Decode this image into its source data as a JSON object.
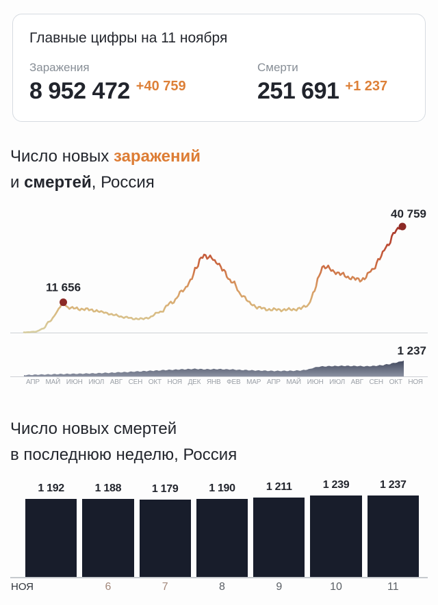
{
  "colors": {
    "accent": "#dd7d35",
    "text_dark": "#23262d",
    "text_gray": "#878e96",
    "bar": "#181d2b",
    "dot": "#8c2a26",
    "weekend_label": "#a3887b",
    "weekday_label": "#5b6066",
    "line_gradient": [
      "#9e2f26",
      "#bc4a33",
      "#cd6d43",
      "#d89a62",
      "#d9b97f",
      "#d8cfa2"
    ],
    "area_gradient": [
      "#323950",
      "#8e94a4"
    ]
  },
  "summary_card": {
    "title": "Главные цифры на 11 ноября",
    "stats": [
      {
        "label": "Заражения",
        "value": "8 952 472",
        "delta": "+40 759"
      },
      {
        "label": "Смерти",
        "value": "251 691",
        "delta": "+1 237"
      }
    ]
  },
  "chart1_title": {
    "l1_normal": "Число новых ",
    "l1_accent": "заражений",
    "l2_pre": "и ",
    "l2_bold": "смертей",
    "l2_post": ", Россия"
  },
  "chart2_title": {
    "line1": "Число новых смертей",
    "line2": "в последнюю неделю, Россия"
  },
  "chart_data": [
    {
      "type": "line",
      "title": "Число новых заражений и смертей, Россия",
      "x_ticks": [
        "АПР",
        "МАЙ",
        "ИЮН",
        "ИЮЛ",
        "АВГ",
        "СЕН",
        "ОКТ",
        "НОЯ",
        "ДЕК",
        "ЯНВ",
        "ФЕВ",
        "МАР",
        "АПР",
        "МАЙ",
        "ИЮН",
        "ИЮЛ",
        "АВГ",
        "СЕН",
        "ОКТ",
        "НОЯ"
      ],
      "series": [
        {
          "name": "заражения",
          "style": "line",
          "points": [
            [
              0.0,
              120
            ],
            [
              0.03,
              300
            ],
            [
              0.05,
              1500
            ],
            [
              0.07,
              4500
            ],
            [
              0.085,
              7500
            ],
            [
              0.095,
              9800
            ],
            [
              0.104,
              11656
            ],
            [
              0.115,
              9800
            ],
            [
              0.13,
              9300
            ],
            [
              0.15,
              9100
            ],
            [
              0.18,
              8700
            ],
            [
              0.21,
              7800
            ],
            [
              0.24,
              6700
            ],
            [
              0.27,
              5800
            ],
            [
              0.29,
              5400
            ],
            [
              0.31,
              5200
            ],
            [
              0.33,
              5800
            ],
            [
              0.36,
              8000
            ],
            [
              0.39,
              11500
            ],
            [
              0.42,
              16000
            ],
            [
              0.44,
              20000
            ],
            [
              0.455,
              24500
            ],
            [
              0.468,
              29000
            ],
            [
              0.475,
              29935
            ],
            [
              0.485,
              28500
            ],
            [
              0.495,
              29000
            ],
            [
              0.51,
              27000
            ],
            [
              0.525,
              24000
            ],
            [
              0.55,
              19500
            ],
            [
              0.575,
              14500
            ],
            [
              0.6,
              11000
            ],
            [
              0.62,
              9600
            ],
            [
              0.64,
              9000
            ],
            [
              0.66,
              8800
            ],
            [
              0.7,
              8800
            ],
            [
              0.73,
              9200
            ],
            [
              0.75,
              10500
            ],
            [
              0.765,
              15000
            ],
            [
              0.78,
              21500
            ],
            [
              0.787,
              25500
            ],
            [
              0.8,
              25000
            ],
            [
              0.82,
              23500
            ],
            [
              0.84,
              22300
            ],
            [
              0.86,
              21200
            ],
            [
              0.88,
              20400
            ],
            [
              0.89,
              20300
            ],
            [
              0.9,
              21000
            ],
            [
              0.92,
              24000
            ],
            [
              0.94,
              28500
            ],
            [
              0.96,
              33500
            ],
            [
              0.98,
              38500
            ],
            [
              0.995,
              40700
            ],
            [
              1.0,
              40759
            ]
          ],
          "annotations": [
            {
              "label": "11 656",
              "f": 0.104,
              "value": 11656
            },
            {
              "label": "40 759",
              "f": 1.0,
              "value": 40759
            }
          ],
          "ymax": 40759
        },
        {
          "name": "смерти",
          "style": "area",
          "points": [
            [
              0.0,
              110
            ],
            [
              0.05,
              150
            ],
            [
              0.1,
              185
            ],
            [
              0.14,
              210
            ],
            [
              0.18,
              235
            ],
            [
              0.22,
              280
            ],
            [
              0.26,
              330
            ],
            [
              0.3,
              390
            ],
            [
              0.34,
              450
            ],
            [
              0.38,
              510
            ],
            [
              0.42,
              560
            ],
            [
              0.45,
              590
            ],
            [
              0.48,
              560
            ],
            [
              0.51,
              575
            ],
            [
              0.54,
              550
            ],
            [
              0.58,
              500
            ],
            [
              0.62,
              460
            ],
            [
              0.66,
              430
            ],
            [
              0.7,
              440
            ],
            [
              0.73,
              470
            ],
            [
              0.75,
              560
            ],
            [
              0.765,
              700
            ],
            [
              0.78,
              780
            ],
            [
              0.81,
              810
            ],
            [
              0.84,
              830
            ],
            [
              0.87,
              820
            ],
            [
              0.9,
              800
            ],
            [
              0.92,
              820
            ],
            [
              0.94,
              870
            ],
            [
              0.96,
              960
            ],
            [
              0.98,
              1090
            ],
            [
              1.0,
              1237
            ]
          ],
          "annotations": [
            {
              "label": "1 237",
              "f": 1.0,
              "value": 1237
            }
          ],
          "ymax": 1237
        }
      ]
    },
    {
      "type": "bar",
      "title": "Число новых смертей в последнюю неделю, Россия",
      "month_label": "НОЯ",
      "x_labels": [
        "",
        "6",
        "7",
        "8",
        "9",
        "10",
        "11"
      ],
      "weekend_indices": [
        1,
        2
      ],
      "values": [
        1192,
        1188,
        1179,
        1190,
        1211,
        1239,
        1237
      ],
      "value_labels": [
        "1 192",
        "1 188",
        "1 179",
        "1 190",
        "1 211",
        "1 239",
        "1 237"
      ]
    }
  ]
}
